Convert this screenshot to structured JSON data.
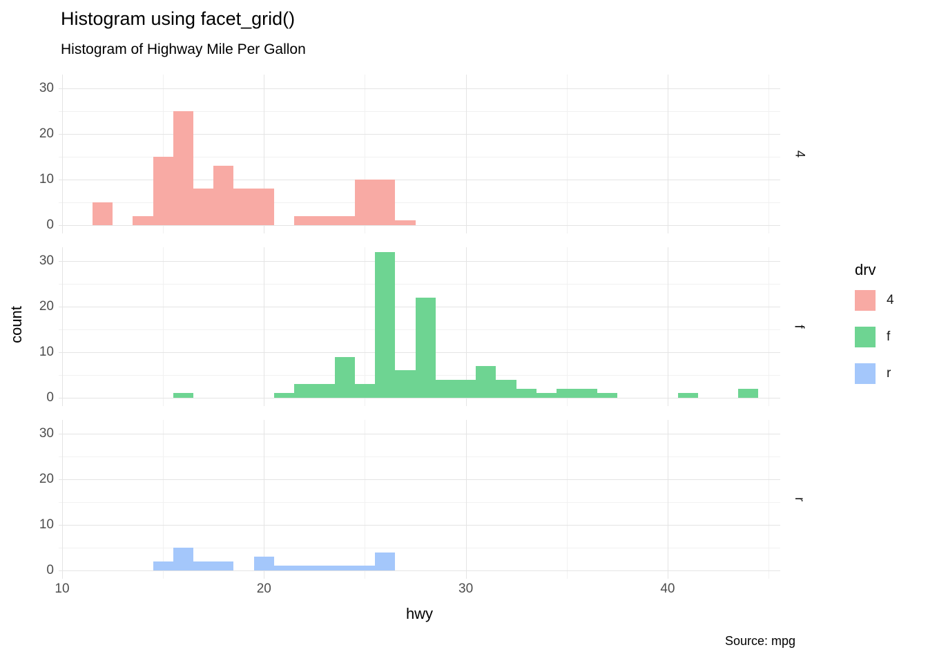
{
  "title": "Histogram using facet_grid()",
  "subtitle": "Histogram of Highway Mile Per Gallon",
  "caption": "Source: mpg",
  "axes": {
    "x_title": "hwy",
    "y_title": "count",
    "x_ticks": [
      10,
      20,
      30,
      40
    ],
    "y_ticks": [
      0,
      10,
      20,
      30
    ],
    "x_minor_ticks": [
      15,
      25,
      35,
      45
    ],
    "y_minor_ticks": [
      5,
      15,
      25
    ]
  },
  "legend": {
    "title": "drv",
    "position": "right",
    "entries": [
      {
        "label": "4",
        "color": "#f8aaa4"
      },
      {
        "label": "f",
        "color": "#6ed492"
      },
      {
        "label": "r",
        "color": "#a4c7fb"
      }
    ]
  },
  "chart_data": {
    "type": "bar",
    "subtype": "faceted-histogram",
    "facet_variable": "drv",
    "x_variable": "hwy",
    "y_variable": "count",
    "binwidth": 1,
    "x_domain": [
      9.8,
      45.8
    ],
    "y_domain": [
      0,
      33
    ],
    "grid": true,
    "facets": [
      {
        "label": "4",
        "color": "#f8aaa4",
        "bins": [
          [
            12,
            5
          ],
          [
            14,
            2
          ],
          [
            15,
            15
          ],
          [
            16,
            25
          ],
          [
            17,
            8
          ],
          [
            18,
            13
          ],
          [
            19,
            8
          ],
          [
            20,
            8
          ],
          [
            22,
            2
          ],
          [
            23,
            2
          ],
          [
            24,
            2
          ],
          [
            25,
            10
          ],
          [
            26,
            10
          ],
          [
            27,
            1
          ]
        ]
      },
      {
        "label": "f",
        "color": "#6ed492",
        "bins": [
          [
            16,
            1
          ],
          [
            21,
            1
          ],
          [
            22,
            3
          ],
          [
            23,
            3
          ],
          [
            24,
            9
          ],
          [
            25,
            3
          ],
          [
            26,
            32
          ],
          [
            27,
            6
          ],
          [
            28,
            22
          ],
          [
            29,
            4
          ],
          [
            30,
            4
          ],
          [
            31,
            7
          ],
          [
            32,
            4
          ],
          [
            33,
            2
          ],
          [
            34,
            1
          ],
          [
            35,
            2
          ],
          [
            36,
            2
          ],
          [
            37,
            1
          ],
          [
            41,
            1
          ],
          [
            44,
            2
          ]
        ]
      },
      {
        "label": "r",
        "color": "#a4c7fb",
        "bins": [
          [
            15,
            2
          ],
          [
            16,
            5
          ],
          [
            17,
            2
          ],
          [
            18,
            2
          ],
          [
            20,
            3
          ],
          [
            21,
            1
          ],
          [
            22,
            1
          ],
          [
            23,
            1
          ],
          [
            24,
            1
          ],
          [
            25,
            1
          ],
          [
            26,
            4
          ]
        ]
      }
    ]
  }
}
